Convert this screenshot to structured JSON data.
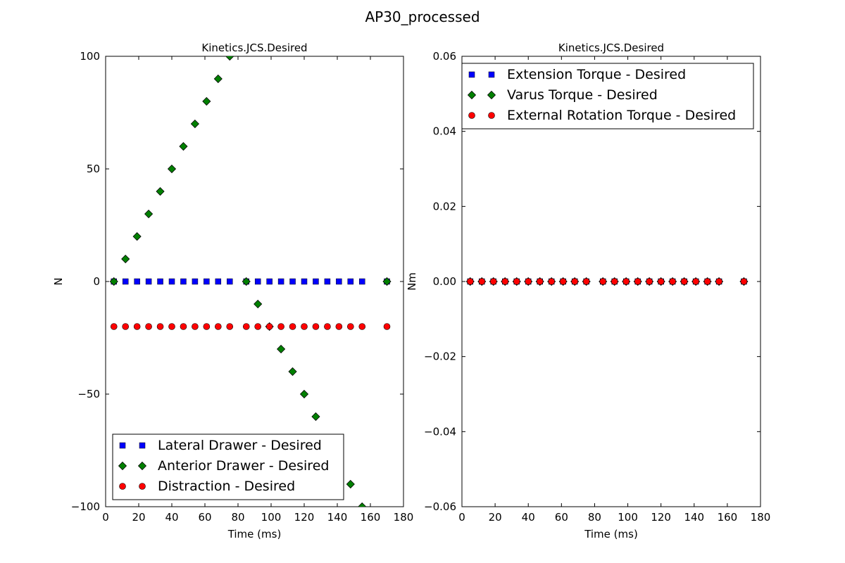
{
  "figure": {
    "suptitle": "AP30_processed"
  },
  "chart_data": [
    {
      "type": "scatter",
      "title": "Kinetics.JCS.Desired",
      "xlabel": "Time (ms)",
      "ylabel": "N",
      "xlim": [
        0,
        180
      ],
      "ylim": [
        -100,
        100
      ],
      "xticks": [
        0,
        20,
        40,
        60,
        80,
        100,
        120,
        140,
        160,
        180
      ],
      "xtick_labels": [
        "0",
        "20",
        "40",
        "60",
        "80",
        "100",
        "120",
        "140",
        "160",
        "180"
      ],
      "yticks": [
        -100,
        -50,
        0,
        50,
        100
      ],
      "ytick_labels": [
        "−100",
        "−50",
        "0",
        "50",
        "100"
      ],
      "grid": false,
      "legend_position": "lower-left",
      "x": [
        5,
        12,
        19,
        26,
        33,
        40,
        47,
        54,
        61,
        68,
        75,
        85,
        92,
        99,
        106,
        113,
        120,
        127,
        134,
        141,
        148,
        155,
        170
      ],
      "series": [
        {
          "name": "Lateral Drawer - Desired",
          "marker": "square",
          "color": "#0000ff",
          "values": [
            0,
            0,
            0,
            0,
            0,
            0,
            0,
            0,
            0,
            0,
            0,
            0,
            0,
            0,
            0,
            0,
            0,
            0,
            0,
            0,
            0,
            0,
            0
          ]
        },
        {
          "name": "Anterior Drawer - Desired",
          "marker": "diamond",
          "color": "#008000",
          "values": [
            0,
            10,
            20,
            30,
            40,
            50,
            60,
            70,
            80,
            90,
            100,
            0,
            -10,
            -20,
            -30,
            -40,
            -50,
            -60,
            -70,
            -80,
            -90,
            -100,
            0
          ]
        },
        {
          "name": "Distraction - Desired",
          "marker": "circle",
          "color": "#ff0000",
          "values": [
            -20,
            -20,
            -20,
            -20,
            -20,
            -20,
            -20,
            -20,
            -20,
            -20,
            -20,
            -20,
            -20,
            -20,
            -20,
            -20,
            -20,
            -20,
            -20,
            -20,
            -20,
            -20,
            -20
          ]
        }
      ]
    },
    {
      "type": "scatter",
      "title": "Kinetics.JCS.Desired",
      "xlabel": "Time (ms)",
      "ylabel": "Nm",
      "xlim": [
        0,
        180
      ],
      "ylim": [
        -0.06,
        0.06
      ],
      "xticks": [
        0,
        20,
        40,
        60,
        80,
        100,
        120,
        140,
        160,
        180
      ],
      "xtick_labels": [
        "0",
        "20",
        "40",
        "60",
        "80",
        "100",
        "120",
        "140",
        "160",
        "180"
      ],
      "yticks": [
        -0.06,
        -0.04,
        -0.02,
        0,
        0.02,
        0.04,
        0.06
      ],
      "ytick_labels": [
        "−0.06",
        "−0.04",
        "−0.02",
        "0.00",
        "0.02",
        "0.04",
        "0.06"
      ],
      "grid": false,
      "legend_position": "upper-left",
      "x": [
        5,
        12,
        19,
        26,
        33,
        40,
        47,
        54,
        61,
        68,
        75,
        85,
        92,
        99,
        106,
        113,
        120,
        127,
        134,
        141,
        148,
        155,
        170
      ],
      "series": [
        {
          "name": "Extension Torque - Desired",
          "marker": "square",
          "color": "#0000ff",
          "values": [
            0,
            0,
            0,
            0,
            0,
            0,
            0,
            0,
            0,
            0,
            0,
            0,
            0,
            0,
            0,
            0,
            0,
            0,
            0,
            0,
            0,
            0,
            0
          ]
        },
        {
          "name": "Varus Torque - Desired",
          "marker": "diamond",
          "color": "#008000",
          "values": [
            0,
            0,
            0,
            0,
            0,
            0,
            0,
            0,
            0,
            0,
            0,
            0,
            0,
            0,
            0,
            0,
            0,
            0,
            0,
            0,
            0,
            0,
            0
          ]
        },
        {
          "name": "External Rotation Torque - Desired",
          "marker": "circle",
          "color": "#ff0000",
          "values": [
            0,
            0,
            0,
            0,
            0,
            0,
            0,
            0,
            0,
            0,
            0,
            0,
            0,
            0,
            0,
            0,
            0,
            0,
            0,
            0,
            0,
            0,
            0
          ]
        }
      ]
    }
  ]
}
